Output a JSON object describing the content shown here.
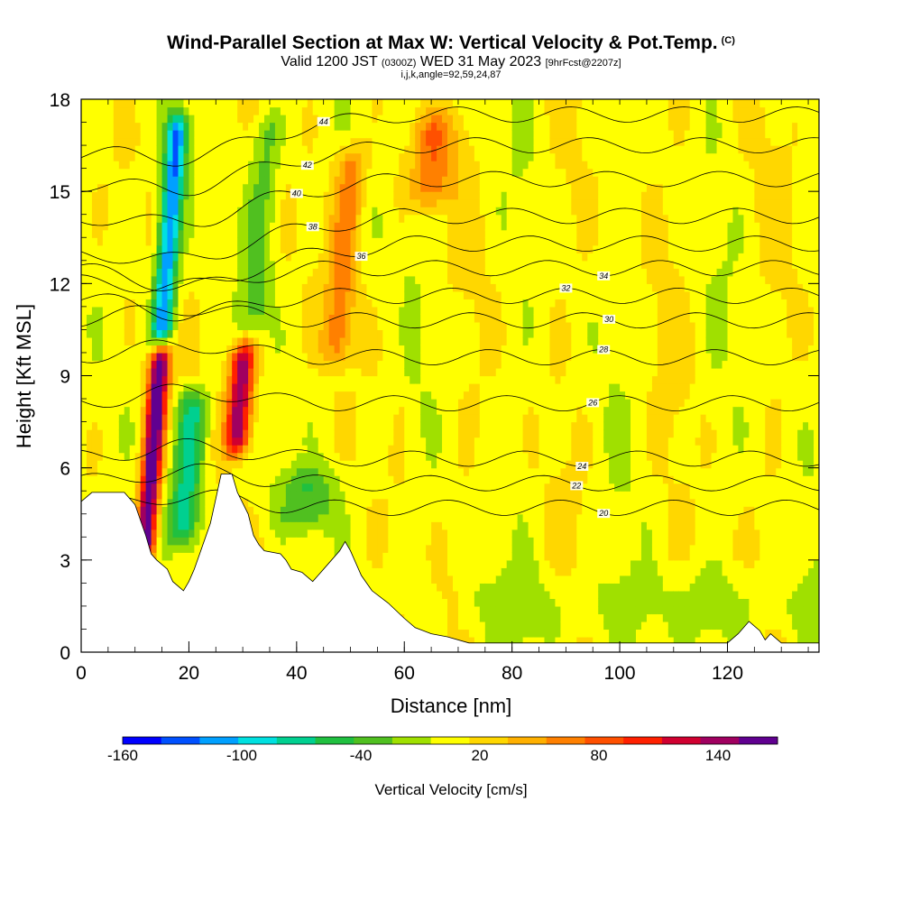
{
  "header": {
    "title": "Wind-Parallel Section at Max W: Vertical Velocity & Pot.Temp.",
    "title_mark": "(C)",
    "valid_prefix": "Valid 1200 JST",
    "valid_utc": "(0300Z)",
    "valid_date": "WED 31 May 2023",
    "forecast_tag": "[9hrFcst@2207z]",
    "grid_info": "i,j,k,angle=92,59,24,87"
  },
  "chart_data": {
    "type": "heatmap",
    "title": "Wind-Parallel Section at Max W: Vertical Velocity & Pot.Temp.",
    "xlabel": "Distance [nm]",
    "ylabel": "Height [Kft MSL]",
    "xlim": [
      0,
      137
    ],
    "ylim": [
      0,
      18
    ],
    "x_ticks": [
      0,
      20,
      40,
      60,
      80,
      100,
      120
    ],
    "y_ticks": [
      0,
      3,
      6,
      9,
      12,
      15,
      18
    ],
    "colorbar": {
      "title": "Vertical Velocity [cm/s]",
      "tick_labels": [
        "-160",
        "-100",
        "-40",
        "20",
        "80",
        "140"
      ],
      "tick_values": [
        -160,
        -100,
        -40,
        20,
        80,
        140
      ],
      "min": -160,
      "max": 170,
      "colors": [
        "#0000ff",
        "#0050ff",
        "#00a0ff",
        "#00e0e0",
        "#00d090",
        "#20c040",
        "#50c020",
        "#a0e000",
        "#ffff00",
        "#ffd700",
        "#ffb000",
        "#ff8000",
        "#ff5000",
        "#ff2000",
        "#d00030",
        "#a00060",
        "#600090"
      ]
    },
    "theta_contours": [
      {
        "label": "20",
        "height": 4.7
      },
      {
        "label": "22",
        "height": 5.5
      },
      {
        "label": "24",
        "height": 6.3
      },
      {
        "label": "26",
        "height": 8.1
      },
      {
        "label": "28",
        "height": 9.6
      },
      {
        "label": "30",
        "height": 10.8
      },
      {
        "label": "32",
        "height": 11.6
      },
      {
        "label": "34",
        "height": 12.5
      },
      {
        "label": "36",
        "height": 13.3
      },
      {
        "label": "38",
        "height": 14.2
      },
      {
        "label": "40",
        "height": 15.4
      },
      {
        "label": "42",
        "height": 16.5
      },
      {
        "label": "44",
        "height": 17.5
      }
    ],
    "w_features": [
      {
        "x": 11.5,
        "h0": 2.5,
        "h1": 10.5,
        "w": 170,
        "halfwidth": 1.3
      },
      {
        "x": 14.5,
        "h0": 9.5,
        "h1": 18,
        "w": -130,
        "halfwidth": 1.4
      },
      {
        "x": 18.5,
        "h0": 3.0,
        "h1": 9.0,
        "w": -80,
        "halfwidth": 2.0
      },
      {
        "x": 28.5,
        "h0": 6.0,
        "h1": 10.5,
        "w": 140,
        "halfwidth": 1.6
      },
      {
        "x": 31.5,
        "h0": 10.0,
        "h1": 18,
        "w": -40,
        "halfwidth": 2.0
      },
      {
        "x": 41.0,
        "h0": 3.5,
        "h1": 6.5,
        "w": -45,
        "halfwidth": 4.0
      },
      {
        "x": 47.0,
        "h0": 9.0,
        "h1": 17,
        "w": 55,
        "halfwidth": 2.0
      },
      {
        "x": 64.0,
        "h0": 14.0,
        "h1": 18,
        "w": 60,
        "halfwidth": 3.0
      }
    ],
    "terrain": [
      [
        0,
        4.9
      ],
      [
        2,
        5.2
      ],
      [
        8,
        5.2
      ],
      [
        10,
        4.8
      ],
      [
        12,
        3.8
      ],
      [
        13,
        3.2
      ],
      [
        14,
        3.0
      ],
      [
        16,
        2.7
      ],
      [
        17,
        2.3
      ],
      [
        19,
        2.0
      ],
      [
        20,
        2.3
      ],
      [
        21,
        2.7
      ],
      [
        22,
        3.2
      ],
      [
        24,
        4.2
      ],
      [
        25,
        5.0
      ],
      [
        26,
        5.8
      ],
      [
        28,
        5.8
      ],
      [
        29,
        5.2
      ],
      [
        31,
        4.5
      ],
      [
        32,
        3.8
      ],
      [
        33,
        3.5
      ],
      [
        34,
        3.3
      ],
      [
        37,
        3.2
      ],
      [
        38,
        3.0
      ],
      [
        39,
        2.7
      ],
      [
        41,
        2.6
      ],
      [
        43,
        2.3
      ],
      [
        44,
        2.5
      ],
      [
        46,
        2.9
      ],
      [
        48,
        3.3
      ],
      [
        49,
        3.6
      ],
      [
        50,
        3.3
      ],
      [
        52,
        2.5
      ],
      [
        54,
        2.0
      ],
      [
        57,
        1.6
      ],
      [
        60,
        1.1
      ],
      [
        62,
        0.8
      ],
      [
        65,
        0.6
      ],
      [
        68,
        0.5
      ],
      [
        72,
        0.3
      ],
      [
        120,
        0.3
      ],
      [
        122,
        0.6
      ],
      [
        124,
        1.0
      ],
      [
        126,
        0.7
      ],
      [
        127,
        0.4
      ],
      [
        128,
        0.6
      ],
      [
        130,
        0.3
      ],
      [
        137,
        0.3
      ]
    ]
  }
}
